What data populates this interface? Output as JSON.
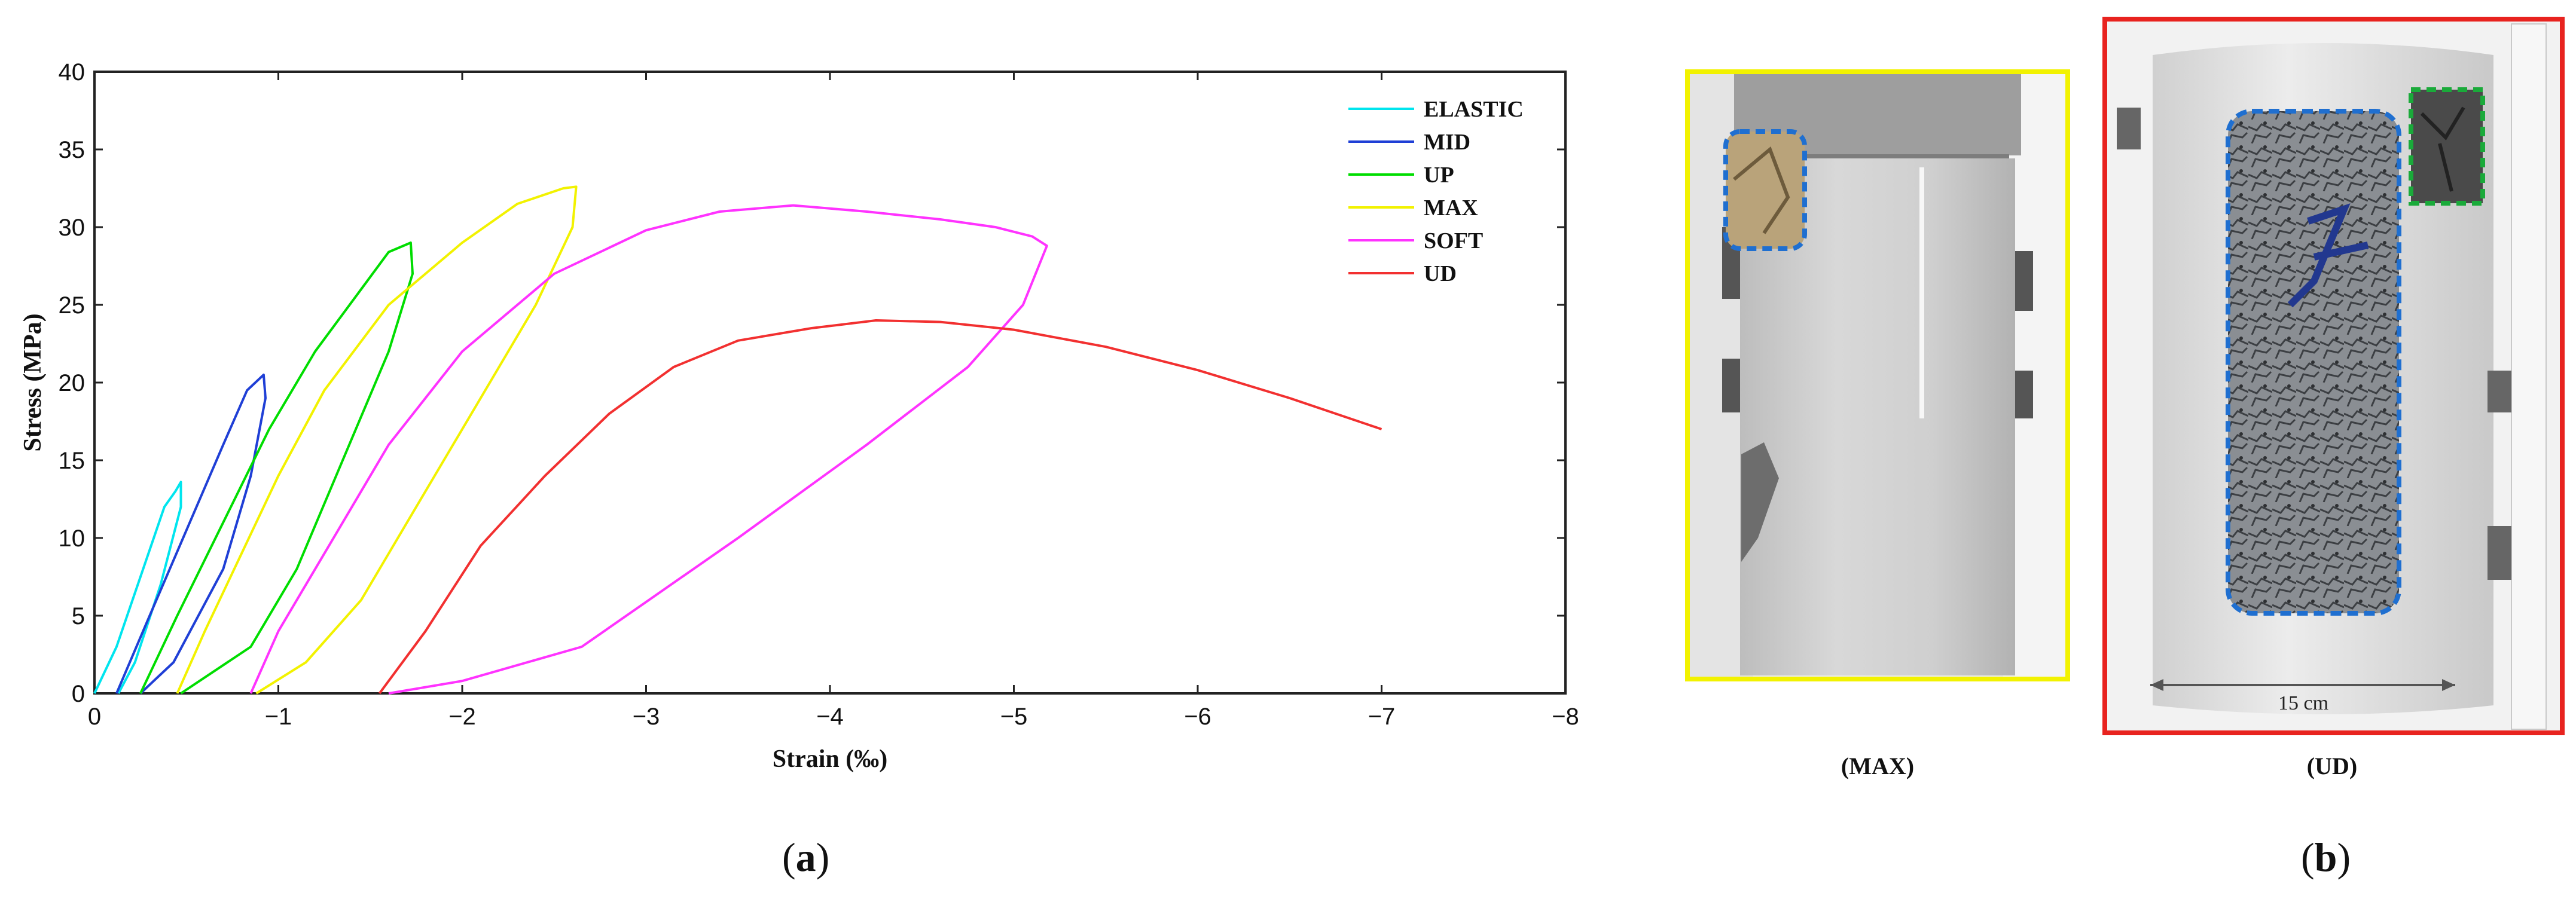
{
  "chart_data": {
    "type": "line",
    "xlabel": "Strain (‰)",
    "ylabel": "Stress (MPa)",
    "xlim": [
      0,
      -8
    ],
    "ylim": [
      0,
      40
    ],
    "xticks": [
      "0",
      "−1",
      "−2",
      "−3",
      "−4",
      "−5",
      "−6",
      "−7",
      "−8"
    ],
    "yticks": [
      "0",
      "5",
      "10",
      "15",
      "20",
      "25",
      "30",
      "35",
      "40"
    ],
    "legend_position": "top-right",
    "series": [
      {
        "name": "ELASTIC",
        "color": "#00e5ee",
        "points": [
          [
            0,
            0
          ],
          [
            -0.12,
            3
          ],
          [
            -0.25,
            7.5
          ],
          [
            -0.38,
            12
          ],
          [
            -0.44,
            13
          ],
          [
            -0.47,
            13.6
          ],
          [
            -0.47,
            12
          ],
          [
            -0.36,
            7
          ],
          [
            -0.22,
            2
          ],
          [
            -0.13,
            0
          ]
        ]
      },
      {
        "name": "MID",
        "color": "#1f3fd6",
        "points": [
          [
            -0.12,
            0
          ],
          [
            -0.3,
            5
          ],
          [
            -0.5,
            10.5
          ],
          [
            -0.7,
            16
          ],
          [
            -0.83,
            19.5
          ],
          [
            -0.92,
            20.5
          ],
          [
            -0.93,
            19
          ],
          [
            -0.85,
            14
          ],
          [
            -0.7,
            8
          ],
          [
            -0.43,
            2
          ],
          [
            -0.25,
            0
          ]
        ]
      },
      {
        "name": "UP",
        "color": "#00dd00",
        "points": [
          [
            -0.25,
            0
          ],
          [
            -0.45,
            5
          ],
          [
            -0.7,
            11
          ],
          [
            -0.95,
            17
          ],
          [
            -1.2,
            22
          ],
          [
            -1.45,
            26
          ],
          [
            -1.6,
            28.4
          ],
          [
            -1.72,
            29
          ],
          [
            -1.73,
            27
          ],
          [
            -1.6,
            22
          ],
          [
            -1.35,
            15
          ],
          [
            -1.1,
            8
          ],
          [
            -0.85,
            3
          ],
          [
            -0.47,
            0
          ]
        ]
      },
      {
        "name": "MAX",
        "color": "#f2f200",
        "points": [
          [
            -0.45,
            0
          ],
          [
            -0.6,
            4
          ],
          [
            -0.8,
            9
          ],
          [
            -1.0,
            14
          ],
          [
            -1.25,
            19.5
          ],
          [
            -1.6,
            25
          ],
          [
            -2.0,
            29
          ],
          [
            -2.3,
            31.5
          ],
          [
            -2.55,
            32.5
          ],
          [
            -2.62,
            32.6
          ],
          [
            -2.6,
            30
          ],
          [
            -2.4,
            25
          ],
          [
            -2.1,
            19
          ],
          [
            -1.75,
            12
          ],
          [
            -1.45,
            6
          ],
          [
            -1.15,
            2
          ],
          [
            -0.88,
            0
          ]
        ]
      },
      {
        "name": "SOFT",
        "color": "#ff33ff",
        "points": [
          [
            -0.85,
            0
          ],
          [
            -1.0,
            4
          ],
          [
            -1.3,
            10
          ],
          [
            -1.6,
            16
          ],
          [
            -2.0,
            22
          ],
          [
            -2.5,
            27
          ],
          [
            -3.0,
            29.8
          ],
          [
            -3.4,
            31
          ],
          [
            -3.8,
            31.4
          ],
          [
            -4.2,
            31
          ],
          [
            -4.6,
            30.5
          ],
          [
            -4.9,
            30
          ],
          [
            -5.1,
            29.4
          ],
          [
            -5.18,
            28.8
          ],
          [
            -5.05,
            25
          ],
          [
            -4.75,
            21
          ],
          [
            -4.2,
            16
          ],
          [
            -3.5,
            10
          ],
          [
            -2.65,
            3
          ],
          [
            -2.0,
            0.8
          ],
          [
            -1.6,
            0
          ]
        ]
      },
      {
        "name": "UD",
        "color": "#f23030",
        "points": [
          [
            -1.55,
            0
          ],
          [
            -1.8,
            4
          ],
          [
            -2.1,
            9.5
          ],
          [
            -2.45,
            14
          ],
          [
            -2.8,
            18
          ],
          [
            -3.15,
            21
          ],
          [
            -3.5,
            22.7
          ],
          [
            -3.9,
            23.5
          ],
          [
            -4.25,
            24
          ],
          [
            -4.6,
            23.9
          ],
          [
            -5.0,
            23.4
          ],
          [
            -5.5,
            22.3
          ],
          [
            -6.0,
            20.8
          ],
          [
            -6.5,
            19
          ],
          [
            -7.0,
            17
          ]
        ]
      }
    ]
  },
  "figure": {
    "panel_a_label": "a",
    "panel_b_label": "b",
    "photo_max_caption": "(MAX)",
    "photo_ud_caption": "(UD)",
    "scale_label": "15 cm",
    "colors": {
      "frame_max": "#f2f200",
      "frame_ud": "#e8231f",
      "highlight_blue": "#1f6fd0",
      "highlight_green": "#1aaa3a"
    }
  }
}
